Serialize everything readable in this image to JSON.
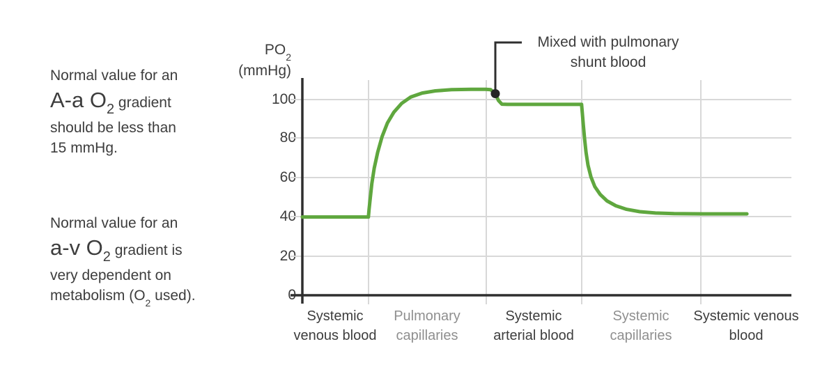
{
  "notes": {
    "aa": {
      "line1": "Normal value for an",
      "big": "A-a O",
      "sub": "2",
      "rest": " gradient",
      "line3": "should be less than",
      "line4": "15 mmHg."
    },
    "av": {
      "line1": "Normal value for an",
      "big": "a-v O",
      "sub": "2",
      "rest": " gradient is",
      "line3": "very dependent on",
      "line4_pre": "metabolism (O",
      "line4_sub": "2",
      "line4_post": " used)."
    }
  },
  "chart": {
    "y_title": {
      "main": "PO",
      "sub": "2",
      "unit": "(mmHg)"
    },
    "y_tick_labels": [
      "100",
      "80",
      "60",
      "40",
      "20",
      "0"
    ],
    "x_labels": [
      {
        "line1": "Systemic",
        "line2": "venous blood"
      },
      {
        "line1": "Pulmonary",
        "line2": "capillaries"
      },
      {
        "line1": "Systemic",
        "line2": "arterial blood"
      },
      {
        "line1": "Systemic",
        "line2": "capillaries"
      },
      {
        "line1": "Systemic venous",
        "line2": "blood"
      }
    ],
    "annotation": {
      "line1": "Mixed with pulmonary",
      "line2": "shunt blood"
    }
  },
  "chart_data": {
    "type": "line",
    "title": "",
    "xlabel": "",
    "ylabel": "PO2 (mmHg)",
    "yticks": [
      0,
      20,
      40,
      60,
      80,
      100
    ],
    "ylim": [
      0,
      112
    ],
    "grid": true,
    "legend": "none",
    "categories": [
      "Systemic venous blood",
      "Pulmonary capillaries",
      "Systemic arterial blood",
      "Systemic capillaries",
      "Systemic venous blood"
    ],
    "region_boundaries_frac": [
      0,
      0.135,
      0.376,
      0.571,
      0.815,
      1.0
    ],
    "key_values": {
      "systemic_venous_po2": 40,
      "pulmonary_capillary_peak_po2": 105,
      "systemic_arterial_po2": 97,
      "post_systemic_capillary_po2": 42
    },
    "annotation": {
      "label": "Mixed with pulmonary shunt blood",
      "point": {
        "f": 0.3946,
        "v": 103
      }
    },
    "series": [
      {
        "name": "PO2",
        "color": "#5FA73E",
        "points": [
          [
            0.0,
            40
          ],
          [
            0.135,
            40
          ],
          [
            0.1365,
            44
          ],
          [
            0.139,
            50
          ],
          [
            0.142,
            57
          ],
          [
            0.147,
            65
          ],
          [
            0.154,
            73
          ],
          [
            0.163,
            81
          ],
          [
            0.174,
            88
          ],
          [
            0.187,
            93.5
          ],
          [
            0.203,
            98
          ],
          [
            0.222,
            101.3
          ],
          [
            0.245,
            103.3
          ],
          [
            0.272,
            104.4
          ],
          [
            0.305,
            105
          ],
          [
            0.345,
            105.2
          ],
          [
            0.375,
            105.2
          ],
          [
            0.385,
            105
          ],
          [
            0.3946,
            103
          ],
          [
            0.401,
            99.5
          ],
          [
            0.408,
            97.6
          ],
          [
            0.42,
            97.5
          ],
          [
            0.571,
            97.5
          ],
          [
            0.5725,
            93
          ],
          [
            0.5745,
            87
          ],
          [
            0.577,
            80
          ],
          [
            0.58,
            73
          ],
          [
            0.584,
            66.5
          ],
          [
            0.59,
            60.5
          ],
          [
            0.598,
            55.5
          ],
          [
            0.609,
            51.5
          ],
          [
            0.623,
            48.2
          ],
          [
            0.641,
            45.7
          ],
          [
            0.663,
            43.9
          ],
          [
            0.69,
            42.7
          ],
          [
            0.722,
            42.0
          ],
          [
            0.76,
            41.7
          ],
          [
            0.82,
            41.6
          ],
          [
            0.909,
            41.6
          ]
        ]
      }
    ]
  },
  "colors": {
    "curve_green": "#5FA73E",
    "axis_dark": "#2f2f2f",
    "gridline": "#d8d8d8",
    "text_dark": "#3d3d3d",
    "text_muted": "#8f8f8f",
    "dot": "#262626"
  }
}
